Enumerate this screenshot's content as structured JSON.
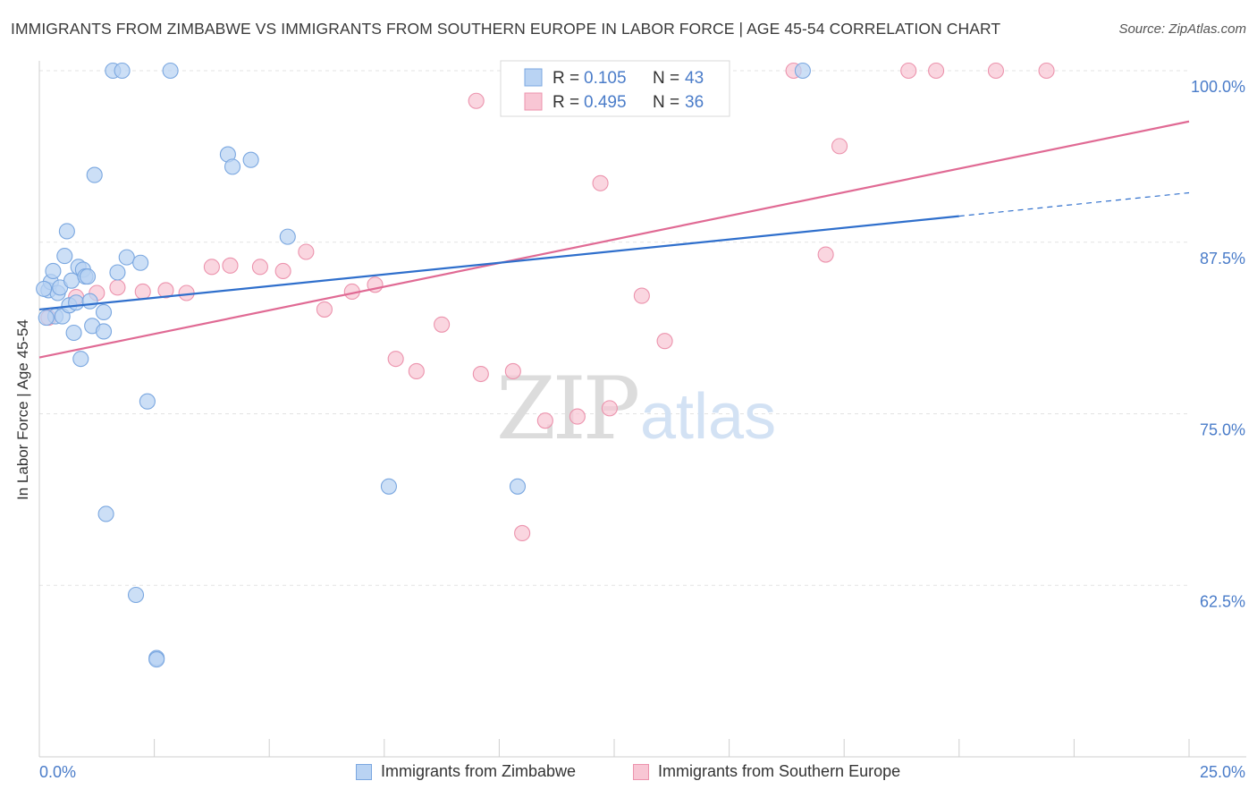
{
  "title": "IMMIGRANTS FROM ZIMBABWE VS IMMIGRANTS FROM SOUTHERN EUROPE IN LABOR FORCE | AGE 45-54 CORRELATION CHART",
  "source": "Source: ZipAtlas.com",
  "watermark": {
    "zip": "ZIP",
    "atlas": "atlas"
  },
  "legend": {
    "r_label": "R =",
    "n_label": "N =",
    "rows": [
      {
        "r": "0.105",
        "n": "43"
      },
      {
        "r": "0.495",
        "n": "36"
      }
    ]
  },
  "colors": {
    "blue_fill": "#b9d3f3",
    "blue_stroke": "#7aa7e0",
    "blue_line": "#2f6fcc",
    "pink_fill": "#f8c6d4",
    "pink_stroke": "#ec93ad",
    "pink_line": "#e06a94",
    "axis_label": "#4a7cc9",
    "grid": "#e3e3e3"
  },
  "chart_data": {
    "type": "scatter",
    "title": "IMMIGRANTS FROM ZIMBABWE VS IMMIGRANTS FROM SOUTHERN EUROPE IN LABOR FORCE | AGE 45-54 CORRELATION CHART",
    "xlabel": "",
    "ylabel": "In Labor Force | Age 45-54",
    "xlim": [
      0,
      25
    ],
    "ylim": [
      50,
      100
    ],
    "x_tick_labels": [
      {
        "value": 0,
        "label": "0.0%"
      },
      {
        "value": 25,
        "label": "25.0%"
      }
    ],
    "y_tick_labels": [
      {
        "value": 100,
        "label": "100.0%"
      },
      {
        "value": 87.5,
        "label": "87.5%"
      },
      {
        "value": 75,
        "label": "75.0%"
      },
      {
        "value": 62.5,
        "label": "62.5%"
      }
    ],
    "grid": "horizontal dashed",
    "legend_placement": "top-center",
    "series": [
      {
        "name": "Immigrants from Zimbabwe",
        "color": "#b9d3f3",
        "points": [
          [
            0.2,
            84.0
          ],
          [
            0.25,
            84.6
          ],
          [
            0.3,
            85.4
          ],
          [
            0.35,
            82.1
          ],
          [
            0.4,
            83.8
          ],
          [
            0.45,
            84.2
          ],
          [
            0.5,
            82.1
          ],
          [
            0.55,
            86.5
          ],
          [
            0.6,
            88.3
          ],
          [
            0.65,
            82.9
          ],
          [
            0.7,
            84.7
          ],
          [
            0.75,
            80.9
          ],
          [
            0.8,
            83.1
          ],
          [
            0.85,
            85.7
          ],
          [
            0.9,
            79.0
          ],
          [
            0.95,
            85.5
          ],
          [
            1.0,
            85.0
          ],
          [
            1.05,
            85.0
          ],
          [
            1.1,
            83.2
          ],
          [
            1.15,
            81.4
          ],
          [
            1.2,
            92.4
          ],
          [
            1.4,
            82.4
          ],
          [
            1.4,
            81.0
          ],
          [
            1.45,
            67.7
          ],
          [
            1.6,
            100.0
          ],
          [
            1.7,
            85.3
          ],
          [
            1.8,
            100.0
          ],
          [
            1.9,
            86.4
          ],
          [
            2.1,
            61.8
          ],
          [
            2.2,
            86.0
          ],
          [
            2.35,
            75.9
          ],
          [
            2.55,
            57.2
          ],
          [
            2.85,
            100.0
          ],
          [
            2.55,
            57.1
          ],
          [
            4.1,
            93.9
          ],
          [
            4.2,
            93.0
          ],
          [
            4.6,
            93.5
          ],
          [
            5.4,
            87.9
          ],
          [
            7.6,
            69.7
          ],
          [
            10.4,
            69.7
          ],
          [
            16.6,
            100.0
          ],
          [
            0.15,
            82.0
          ],
          [
            0.1,
            84.1
          ]
        ]
      },
      {
        "name": "Immigrants from Southern Europe",
        "color": "#f8c6d4",
        "points": [
          [
            0.2,
            82.0
          ],
          [
            0.8,
            83.5
          ],
          [
            1.25,
            83.8
          ],
          [
            1.7,
            84.2
          ],
          [
            2.25,
            83.9
          ],
          [
            2.75,
            84.0
          ],
          [
            3.2,
            83.8
          ],
          [
            3.75,
            85.7
          ],
          [
            4.15,
            85.8
          ],
          [
            4.8,
            85.7
          ],
          [
            5.3,
            85.4
          ],
          [
            5.8,
            86.8
          ],
          [
            6.2,
            82.6
          ],
          [
            6.8,
            83.9
          ],
          [
            7.3,
            84.4
          ],
          [
            7.75,
            79.0
          ],
          [
            8.2,
            78.1
          ],
          [
            8.75,
            81.5
          ],
          [
            9.5,
            97.8
          ],
          [
            9.6,
            77.9
          ],
          [
            10.3,
            78.1
          ],
          [
            11.0,
            74.5
          ],
          [
            11.7,
            74.8
          ],
          [
            12.2,
            91.8
          ],
          [
            12.4,
            75.4
          ],
          [
            13.1,
            83.6
          ],
          [
            13.6,
            80.3
          ],
          [
            14.1,
            100.0
          ],
          [
            16.4,
            100.0
          ],
          [
            17.1,
            86.6
          ],
          [
            17.4,
            94.5
          ],
          [
            18.9,
            100.0
          ],
          [
            19.5,
            100.0
          ],
          [
            20.8,
            100.0
          ],
          [
            21.9,
            100.0
          ],
          [
            10.5,
            66.3
          ]
        ]
      }
    ],
    "trend_lines": [
      {
        "series": "Immigrants from Zimbabwe",
        "solid": [
          [
            0,
            82.6
          ],
          [
            20,
            89.4
          ]
        ],
        "dashed": [
          [
            20,
            89.4
          ],
          [
            25,
            91.1
          ]
        ]
      },
      {
        "series": "Immigrants from Southern Europe",
        "solid": [
          [
            0,
            79.1
          ],
          [
            25,
            96.3
          ]
        ]
      }
    ]
  }
}
